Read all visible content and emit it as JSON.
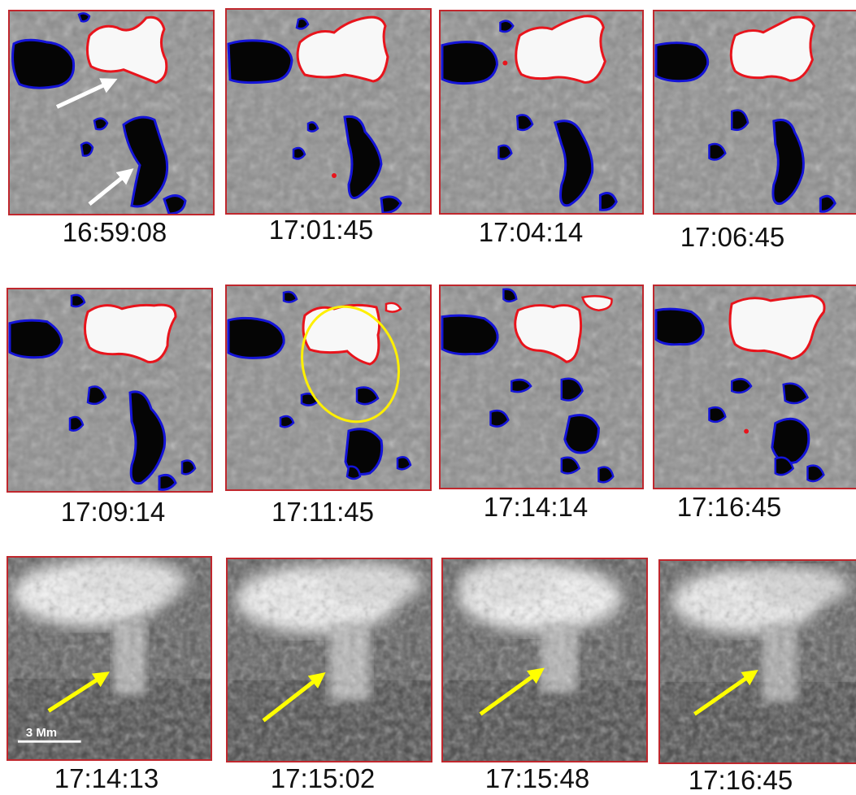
{
  "figure": {
    "rows": [
      {
        "kind": "magnetogram",
        "panels": [
          {
            "time": "16:59:08"
          },
          {
            "time": "17:01:45"
          },
          {
            "time": "17:04:14"
          },
          {
            "time": "17:06:45"
          }
        ]
      },
      {
        "kind": "magnetogram",
        "panels": [
          {
            "time": "17:09:14"
          },
          {
            "time": "17:11:45"
          },
          {
            "time": "17:14:14"
          },
          {
            "time": "17:16:45"
          }
        ]
      },
      {
        "kind": "euv-image",
        "panels": [
          {
            "time": "17:14:13"
          },
          {
            "time": "17:15:02"
          },
          {
            "time": "17:15:48"
          },
          {
            "time": "17:16:45"
          }
        ]
      }
    ],
    "scale_bar": {
      "label": "3 Mm"
    },
    "colors": {
      "panel_border": "#c0272d",
      "positive_contour": "#e8141c",
      "negative_contour": "#1414d8",
      "highlight_ellipse": "#ffef00",
      "arrow_row1": "#ffffff",
      "arrow_row3": "#ffff00"
    }
  }
}
